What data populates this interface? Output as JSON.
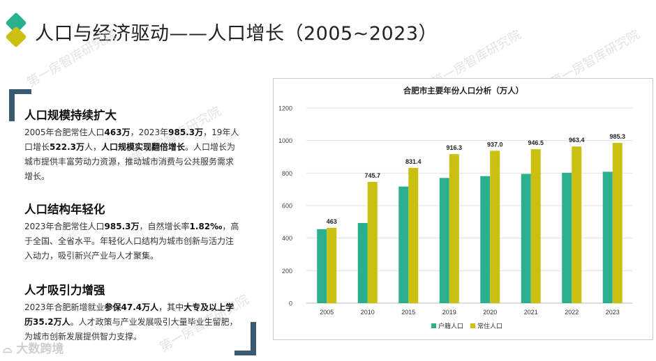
{
  "header": {
    "title": "人口与经济驱动——人口增长（2005~2023）"
  },
  "watermark": "第一房智库研究院",
  "brand": "大数跨境",
  "blocks": [
    {
      "heading": "人口规模持续扩大",
      "segments": [
        {
          "t": "2005年合肥常住人口",
          "b": false
        },
        {
          "t": "463万",
          "b": true
        },
        {
          "t": "，2023年",
          "b": false
        },
        {
          "t": "985.3万",
          "b": true
        },
        {
          "t": "，19年人口增长",
          "b": false
        },
        {
          "t": "522.3万",
          "b": true
        },
        {
          "t": "人，",
          "b": false
        },
        {
          "t": "人口规模实现翻倍增长",
          "b": true
        },
        {
          "t": "。人口增长为城市提供丰富劳动力资源，推动城市消费与公共服务需求增长。",
          "b": false
        }
      ]
    },
    {
      "heading": "人口结构年轻化",
      "segments": [
        {
          "t": "2023年合肥常住人口",
          "b": false
        },
        {
          "t": "985.3万",
          "b": true
        },
        {
          "t": "，自然增长率",
          "b": false
        },
        {
          "t": "1.82‰",
          "b": true
        },
        {
          "t": "，高于全国、全省水平。年轻化人口结构为城市创新与活力注入动力，吸引新兴产业与人才聚集。",
          "b": false
        }
      ]
    },
    {
      "heading": "人才吸引力增强",
      "segments": [
        {
          "t": "2023年合肥新增就业",
          "b": false
        },
        {
          "t": "参保47.4万人",
          "b": true
        },
        {
          "t": "，其中",
          "b": false
        },
        {
          "t": "大专及以上学历35.2万人",
          "b": true
        },
        {
          "t": "。人才政策与产业发展吸引大量毕业生留肥，为城市创新发展提供智力支撑。",
          "b": false
        }
      ]
    }
  ],
  "colors": {
    "huji": "#2ab08e",
    "changzhu": "#c9c010",
    "accent": "#3a5a72"
  },
  "chart_data": {
    "type": "bar",
    "title": "合肥市主要年份人口分析（万人）",
    "categories": [
      "2005",
      "2010",
      "2015",
      "2019",
      "2020",
      "2021",
      "2022",
      "2023"
    ],
    "series": [
      {
        "name": "户籍人口",
        "values": [
          455,
          493,
          717,
          770,
          781,
          795,
          802,
          808
        ],
        "labels": false
      },
      {
        "name": "常住人口",
        "values": [
          463,
          745.7,
          831.4,
          916.3,
          937.0,
          946.5,
          963.4,
          985.3
        ],
        "labels": true
      }
    ],
    "data_labels": [
      "463",
      "745.7",
      "831.4",
      "916.3",
      "937.0",
      "946.5",
      "963.4",
      "985.3"
    ],
    "ylim": [
      0,
      1200
    ],
    "yticks": [
      0,
      200,
      400,
      600,
      800,
      1000,
      1200
    ],
    "grid": true,
    "legend": "bottom"
  }
}
